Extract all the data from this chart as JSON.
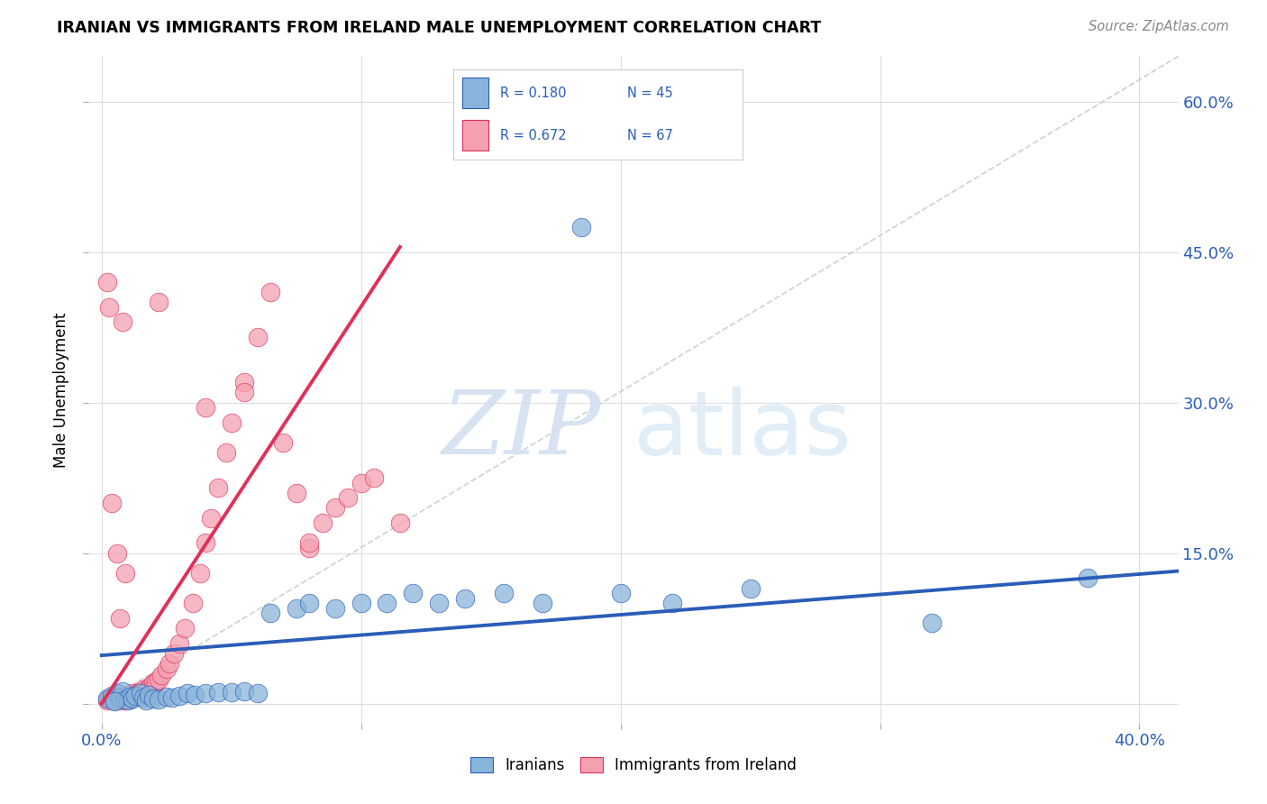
{
  "title": "IRANIAN VS IMMIGRANTS FROM IRELAND MALE UNEMPLOYMENT CORRELATION CHART",
  "source": "Source: ZipAtlas.com",
  "ylabel": "Male Unemployment",
  "yticks": [
    0.0,
    0.15,
    0.3,
    0.45,
    0.6
  ],
  "ytick_labels": [
    "",
    "15.0%",
    "30.0%",
    "45.0%",
    "60.0%"
  ],
  "xticks": [
    0.0,
    0.1,
    0.2,
    0.3,
    0.4
  ],
  "xmin": -0.005,
  "xmax": 0.415,
  "ymin": -0.02,
  "ymax": 0.645,
  "legend_label1": "Iranians",
  "legend_label2": "Immigrants from Ireland",
  "color_blue": "#89B4D9",
  "color_pink": "#F4A0B0",
  "color_blue_line": "#2B5DB8",
  "color_pink_line": "#E0305A",
  "color_diagonal": "#C8C8C8",
  "color_grid": "#DEDEDE",
  "iranians_x": [
    0.002,
    0.004,
    0.005,
    0.006,
    0.007,
    0.008,
    0.009,
    0.01,
    0.011,
    0.012,
    0.013,
    0.015,
    0.016,
    0.017,
    0.018,
    0.02,
    0.022,
    0.025,
    0.027,
    0.03,
    0.033,
    0.036,
    0.04,
    0.045,
    0.05,
    0.055,
    0.06,
    0.065,
    0.075,
    0.08,
    0.09,
    0.1,
    0.11,
    0.12,
    0.13,
    0.14,
    0.155,
    0.17,
    0.185,
    0.2,
    0.22,
    0.25,
    0.32,
    0.38,
    0.005
  ],
  "iranians_y": [
    0.005,
    0.008,
    0.003,
    0.01,
    0.006,
    0.012,
    0.004,
    0.003,
    0.007,
    0.005,
    0.008,
    0.01,
    0.006,
    0.003,
    0.009,
    0.005,
    0.004,
    0.007,
    0.006,
    0.008,
    0.01,
    0.009,
    0.01,
    0.011,
    0.011,
    0.012,
    0.01,
    0.09,
    0.095,
    0.1,
    0.095,
    0.1,
    0.1,
    0.11,
    0.1,
    0.105,
    0.11,
    0.1,
    0.475,
    0.11,
    0.1,
    0.115,
    0.08,
    0.125,
    0.002
  ],
  "ireland_x": [
    0.002,
    0.003,
    0.004,
    0.005,
    0.005,
    0.006,
    0.006,
    0.007,
    0.007,
    0.008,
    0.008,
    0.009,
    0.009,
    0.01,
    0.01,
    0.011,
    0.011,
    0.012,
    0.012,
    0.013,
    0.014,
    0.015,
    0.015,
    0.016,
    0.017,
    0.018,
    0.019,
    0.02,
    0.02,
    0.021,
    0.022,
    0.023,
    0.025,
    0.026,
    0.028,
    0.03,
    0.032,
    0.035,
    0.038,
    0.04,
    0.042,
    0.045,
    0.048,
    0.05,
    0.055,
    0.06,
    0.065,
    0.07,
    0.075,
    0.08,
    0.085,
    0.09,
    0.095,
    0.1,
    0.105,
    0.115,
    0.022,
    0.04,
    0.055,
    0.08,
    0.008,
    0.003,
    0.006,
    0.004,
    0.007,
    0.002,
    0.009
  ],
  "ireland_y": [
    0.003,
    0.005,
    0.004,
    0.006,
    0.003,
    0.005,
    0.004,
    0.007,
    0.003,
    0.006,
    0.004,
    0.008,
    0.003,
    0.007,
    0.005,
    0.009,
    0.004,
    0.01,
    0.006,
    0.008,
    0.01,
    0.012,
    0.008,
    0.014,
    0.012,
    0.016,
    0.018,
    0.02,
    0.015,
    0.022,
    0.024,
    0.028,
    0.035,
    0.04,
    0.05,
    0.06,
    0.075,
    0.1,
    0.13,
    0.16,
    0.185,
    0.215,
    0.25,
    0.28,
    0.32,
    0.365,
    0.41,
    0.26,
    0.21,
    0.155,
    0.18,
    0.195,
    0.205,
    0.22,
    0.225,
    0.18,
    0.4,
    0.295,
    0.31,
    0.16,
    0.38,
    0.395,
    0.15,
    0.2,
    0.085,
    0.42,
    0.13
  ],
  "iran_line_x": [
    0.0,
    0.415
  ],
  "iran_line_y": [
    0.048,
    0.132
  ],
  "ire_line_x": [
    0.0,
    0.115
  ],
  "ire_line_y": [
    0.0,
    0.455
  ]
}
